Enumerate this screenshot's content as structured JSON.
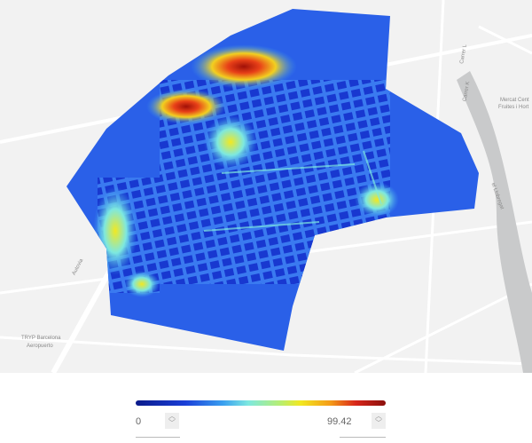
{
  "map_labels": {
    "street_l": "Carrer L",
    "street_k": "Carrer K",
    "market": "Mercat Central de Fruites i Hortalisses",
    "market_line1": "Mercat Cent",
    "market_line2": "Fruites i Hort",
    "motorway": "Autovia",
    "river": "el Llobregat",
    "hotel_line1": "TRYP Barcelona",
    "hotel_line2": "Aeropuerto"
  },
  "legend": {
    "min_value": "0",
    "max_value": "99.42",
    "colormap": [
      "#0a1a8a",
      "#1a3fd8",
      "#3aa0f0",
      "#7de8e0",
      "#b8ee70",
      "#f2e820",
      "#f49a18",
      "#d8261a",
      "#8a0f0c"
    ]
  },
  "icons": {
    "stepper": "up-down-chevron-icon"
  }
}
